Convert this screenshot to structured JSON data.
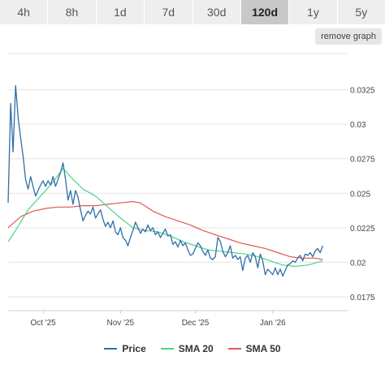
{
  "tabs": [
    {
      "label": "4h",
      "active": false
    },
    {
      "label": "8h",
      "active": false
    },
    {
      "label": "1d",
      "active": false
    },
    {
      "label": "7d",
      "active": false
    },
    {
      "label": "30d",
      "active": false
    },
    {
      "label": "120d",
      "active": true
    },
    {
      "label": "1y",
      "active": false
    },
    {
      "label": "5y",
      "active": false
    }
  ],
  "remove_graph_label": "remove graph",
  "chart_data": {
    "type": "line",
    "title": "",
    "xlabel": "",
    "ylabel": "",
    "ylim": [
      0.0165,
      0.035
    ],
    "x_range": [
      "2025-09-17",
      "2026-01-31"
    ],
    "y_ticks": [
      0.0175,
      0.02,
      0.0225,
      0.025,
      0.0275,
      0.03,
      0.0325
    ],
    "y_tick_labels": [
      "0.0175",
      "0.02",
      "0.0225",
      "0.025",
      "0.0275",
      "0.03",
      "0.0325"
    ],
    "x_ticks": [
      "2025-10-01",
      "2025-11-01",
      "2025-12-01",
      "2026-01-01"
    ],
    "x_tick_labels": [
      "Oct '25",
      "Nov '25",
      "Dec '25",
      "Jan '26"
    ],
    "grid": true,
    "legend_position": "bottom",
    "series": [
      {
        "name": "Price",
        "color": "#2f6fa7",
        "points": [
          [
            "2025-09-17",
            0.0243
          ],
          [
            "2025-09-18",
            0.0315
          ],
          [
            "2025-09-19",
            0.028
          ],
          [
            "2025-09-20",
            0.0328
          ],
          [
            "2025-09-21",
            0.0305
          ],
          [
            "2025-09-22",
            0.029
          ],
          [
            "2025-09-23",
            0.0277
          ],
          [
            "2025-09-24",
            0.026
          ],
          [
            "2025-09-25",
            0.0253
          ],
          [
            "2025-09-26",
            0.0262
          ],
          [
            "2025-09-27",
            0.0255
          ],
          [
            "2025-09-28",
            0.0248
          ],
          [
            "2025-09-29",
            0.0252
          ],
          [
            "2025-09-30",
            0.0256
          ],
          [
            "2025-10-01",
            0.0259
          ],
          [
            "2025-10-02",
            0.0255
          ],
          [
            "2025-10-03",
            0.0259
          ],
          [
            "2025-10-04",
            0.0256
          ],
          [
            "2025-10-05",
            0.0262
          ],
          [
            "2025-10-06",
            0.0255
          ],
          [
            "2025-10-07",
            0.026
          ],
          [
            "2025-10-08",
            0.0265
          ],
          [
            "2025-10-09",
            0.0272
          ],
          [
            "2025-10-10",
            0.026
          ],
          [
            "2025-10-11",
            0.0245
          ],
          [
            "2025-10-12",
            0.0252
          ],
          [
            "2025-10-13",
            0.0242
          ],
          [
            "2025-10-14",
            0.0252
          ],
          [
            "2025-10-15",
            0.0247
          ],
          [
            "2025-10-16",
            0.0238
          ],
          [
            "2025-10-17",
            0.023
          ],
          [
            "2025-10-18",
            0.0234
          ],
          [
            "2025-10-19",
            0.0237
          ],
          [
            "2025-10-20",
            0.0235
          ],
          [
            "2025-10-21",
            0.024
          ],
          [
            "2025-10-22",
            0.0232
          ],
          [
            "2025-10-23",
            0.0235
          ],
          [
            "2025-10-24",
            0.0238
          ],
          [
            "2025-10-25",
            0.0231
          ],
          [
            "2025-10-26",
            0.0226
          ],
          [
            "2025-10-27",
            0.0229
          ],
          [
            "2025-10-28",
            0.0225
          ],
          [
            "2025-10-29",
            0.023
          ],
          [
            "2025-10-30",
            0.0222
          ],
          [
            "2025-10-31",
            0.022
          ],
          [
            "2025-11-01",
            0.0225
          ],
          [
            "2025-11-02",
            0.0218
          ],
          [
            "2025-11-03",
            0.0216
          ],
          [
            "2025-11-04",
            0.0212
          ],
          [
            "2025-11-05",
            0.0218
          ],
          [
            "2025-11-06",
            0.0223
          ],
          [
            "2025-11-07",
            0.0229
          ],
          [
            "2025-11-08",
            0.0225
          ],
          [
            "2025-11-09",
            0.0221
          ],
          [
            "2025-11-10",
            0.0224
          ],
          [
            "2025-11-11",
            0.0222
          ],
          [
            "2025-11-12",
            0.0227
          ],
          [
            "2025-11-13",
            0.0223
          ],
          [
            "2025-11-14",
            0.0225
          ],
          [
            "2025-11-15",
            0.022
          ],
          [
            "2025-11-16",
            0.0222
          ],
          [
            "2025-11-17",
            0.0218
          ],
          [
            "2025-11-18",
            0.0221
          ],
          [
            "2025-11-19",
            0.0224
          ],
          [
            "2025-11-20",
            0.0219
          ],
          [
            "2025-11-21",
            0.022
          ],
          [
            "2025-11-22",
            0.0213
          ],
          [
            "2025-11-23",
            0.0215
          ],
          [
            "2025-11-24",
            0.0211
          ],
          [
            "2025-11-25",
            0.0216
          ],
          [
            "2025-11-26",
            0.0212
          ],
          [
            "2025-11-27",
            0.0214
          ],
          [
            "2025-11-28",
            0.0209
          ],
          [
            "2025-11-29",
            0.0205
          ],
          [
            "2025-11-30",
            0.0206
          ],
          [
            "2025-12-01",
            0.021
          ],
          [
            "2025-12-02",
            0.0214
          ],
          [
            "2025-12-03",
            0.0212
          ],
          [
            "2025-12-04",
            0.0208
          ],
          [
            "2025-12-05",
            0.0205
          ],
          [
            "2025-12-06",
            0.0209
          ],
          [
            "2025-12-07",
            0.0203
          ],
          [
            "2025-12-08",
            0.0202
          ],
          [
            "2025-12-09",
            0.0204
          ],
          [
            "2025-12-10",
            0.0218
          ],
          [
            "2025-12-11",
            0.0215
          ],
          [
            "2025-12-12",
            0.0208
          ],
          [
            "2025-12-13",
            0.0204
          ],
          [
            "2025-12-14",
            0.0207
          ],
          [
            "2025-12-15",
            0.0212
          ],
          [
            "2025-12-16",
            0.0203
          ],
          [
            "2025-12-17",
            0.0205
          ],
          [
            "2025-12-18",
            0.0202
          ],
          [
            "2025-12-19",
            0.0204
          ],
          [
            "2025-12-20",
            0.0194
          ],
          [
            "2025-12-21",
            0.0203
          ],
          [
            "2025-12-22",
            0.0205
          ],
          [
            "2025-12-23",
            0.02
          ],
          [
            "2025-12-24",
            0.0207
          ],
          [
            "2025-12-25",
            0.0204
          ],
          [
            "2025-12-26",
            0.0196
          ],
          [
            "2025-12-27",
            0.0206
          ],
          [
            "2025-12-28",
            0.0201
          ],
          [
            "2025-12-29",
            0.0191
          ],
          [
            "2025-12-30",
            0.0195
          ],
          [
            "2025-12-31",
            0.0193
          ],
          [
            "2026-01-01",
            0.0191
          ],
          [
            "2026-01-02",
            0.0196
          ],
          [
            "2026-01-03",
            0.0191
          ],
          [
            "2026-01-04",
            0.0195
          ],
          [
            "2026-01-05",
            0.019
          ],
          [
            "2026-01-06",
            0.0194
          ],
          [
            "2026-01-07",
            0.0198
          ],
          [
            "2026-01-08",
            0.0199
          ],
          [
            "2026-01-09",
            0.0201
          ],
          [
            "2026-01-10",
            0.02
          ],
          [
            "2026-01-11",
            0.0203
          ],
          [
            "2026-01-12",
            0.0205
          ],
          [
            "2026-01-13",
            0.0201
          ],
          [
            "2026-01-14",
            0.0206
          ],
          [
            "2026-01-15",
            0.0205
          ],
          [
            "2026-01-16",
            0.0207
          ],
          [
            "2026-01-17",
            0.0204
          ],
          [
            "2026-01-18",
            0.0208
          ],
          [
            "2026-01-19",
            0.021
          ],
          [
            "2026-01-20",
            0.0207
          ],
          [
            "2026-01-21",
            0.0212
          ]
        ]
      },
      {
        "name": "SMA 20",
        "color": "#4fd08c",
        "points": [
          [
            "2025-09-17",
            0.0215
          ],
          [
            "2025-09-20",
            0.0223
          ],
          [
            "2025-09-25",
            0.0238
          ],
          [
            "2025-09-30",
            0.0248
          ],
          [
            "2025-10-05",
            0.0258
          ],
          [
            "2025-10-09",
            0.0268
          ],
          [
            "2025-10-13",
            0.026
          ],
          [
            "2025-10-17",
            0.0253
          ],
          [
            "2025-10-22",
            0.0248
          ],
          [
            "2025-10-27",
            0.024
          ],
          [
            "2025-11-01",
            0.0232
          ],
          [
            "2025-11-06",
            0.0225
          ],
          [
            "2025-11-11",
            0.0223
          ],
          [
            "2025-11-16",
            0.0222
          ],
          [
            "2025-11-21",
            0.0219
          ],
          [
            "2025-11-26",
            0.0215
          ],
          [
            "2025-12-01",
            0.0212
          ],
          [
            "2025-12-06",
            0.0209
          ],
          [
            "2025-12-11",
            0.0208
          ],
          [
            "2025-12-16",
            0.0207
          ],
          [
            "2025-12-21",
            0.0206
          ],
          [
            "2025-12-26",
            0.0204
          ],
          [
            "2025-12-31",
            0.0201
          ],
          [
            "2026-01-05",
            0.0198
          ],
          [
            "2026-01-10",
            0.0197
          ],
          [
            "2026-01-15",
            0.0198
          ],
          [
            "2026-01-21",
            0.0201
          ]
        ]
      },
      {
        "name": "SMA 50",
        "color": "#e05a4f",
        "points": [
          [
            "2025-09-17",
            0.0225
          ],
          [
            "2025-09-22",
            0.0233
          ],
          [
            "2025-09-27",
            0.0237
          ],
          [
            "2025-10-02",
            0.0239
          ],
          [
            "2025-10-07",
            0.024
          ],
          [
            "2025-10-12",
            0.024
          ],
          [
            "2025-10-17",
            0.0241
          ],
          [
            "2025-10-22",
            0.0241
          ],
          [
            "2025-10-27",
            0.0242
          ],
          [
            "2025-11-01",
            0.0243
          ],
          [
            "2025-11-06",
            0.0244
          ],
          [
            "2025-11-09",
            0.0243
          ],
          [
            "2025-11-14",
            0.0237
          ],
          [
            "2025-11-19",
            0.0233
          ],
          [
            "2025-11-24",
            0.023
          ],
          [
            "2025-11-29",
            0.0227
          ],
          [
            "2025-12-04",
            0.0223
          ],
          [
            "2025-12-09",
            0.022
          ],
          [
            "2025-12-14",
            0.0217
          ],
          [
            "2025-12-19",
            0.0214
          ],
          [
            "2025-12-24",
            0.0212
          ],
          [
            "2025-12-29",
            0.021
          ],
          [
            "2026-01-03",
            0.0207
          ],
          [
            "2026-01-08",
            0.0204
          ],
          [
            "2026-01-13",
            0.0203
          ],
          [
            "2026-01-18",
            0.0203
          ],
          [
            "2026-01-21",
            0.0202
          ]
        ]
      }
    ]
  }
}
